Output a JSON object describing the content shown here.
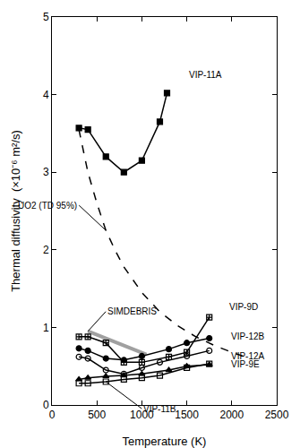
{
  "chart_data": {
    "type": "line",
    "xlabel": "Temperature (K)",
    "ylabel": "Thermal diffusivity  (×10⁻⁶ m²/s)",
    "xlim": [
      0,
      2500
    ],
    "xticks": [
      0,
      500,
      1000,
      1500,
      2000,
      2500
    ],
    "ylim": [
      0,
      5
    ],
    "yticks": [
      0,
      1,
      2,
      3,
      4,
      5
    ],
    "grid": false,
    "series": [
      {
        "name": "VIP-11A",
        "color": "#000000",
        "marker": "square",
        "line_style": "solid",
        "x": [
          300,
          400,
          600,
          800,
          1000,
          1200,
          1280
        ],
        "values": [
          3.57,
          3.55,
          3.2,
          3.0,
          3.15,
          3.65,
          4.02
        ]
      },
      {
        "name": "UO2 (TD 95%)",
        "color": "#000000",
        "marker": "none",
        "line_style": "dash",
        "x": [
          300,
          400,
          500,
          600,
          700,
          800,
          1000,
          1200,
          1400,
          1600,
          1800,
          2000,
          2200
        ],
        "values": [
          3.55,
          3.0,
          2.6,
          2.25,
          2.0,
          1.78,
          1.45,
          1.2,
          1.02,
          0.88,
          0.77,
          0.68,
          0.6
        ]
      },
      {
        "name": "SIMDEBRIS",
        "color": "#a0a0a0",
        "marker": "none",
        "line_style": "solid",
        "x": [
          400,
          1050
        ],
        "values": [
          0.95,
          0.65
        ]
      },
      {
        "name": "VIP-9D",
        "color": "#000000",
        "marker": "square-cross-open",
        "line_style": "solid",
        "x": [
          300,
          400,
          600,
          800,
          1000,
          1300,
          1500,
          1750
        ],
        "values": [
          0.88,
          0.88,
          0.8,
          0.55,
          0.55,
          0.62,
          0.68,
          1.13
        ]
      },
      {
        "name": "VIP-12B",
        "color": "#000000",
        "marker": "circle",
        "line_style": "solid",
        "x": [
          300,
          400,
          600,
          800,
          1000,
          1300,
          1500,
          1750
        ],
        "values": [
          0.73,
          0.7,
          0.6,
          0.58,
          0.63,
          0.72,
          0.8,
          0.86
        ]
      },
      {
        "name": "VIP-12A",
        "color": "#000000",
        "marker": "circle-open",
        "line_style": "solid",
        "x": [
          300,
          400,
          600,
          800,
          1000,
          1200,
          1500,
          1750
        ],
        "values": [
          0.62,
          0.6,
          0.45,
          0.4,
          0.48,
          0.55,
          0.63,
          0.7
        ]
      },
      {
        "name": "VIP-9E",
        "color": "#000000",
        "marker": "triangle-up",
        "line_style": "solid",
        "x": [
          300,
          400,
          600,
          800,
          1000,
          1300,
          1500,
          1750
        ],
        "values": [
          0.33,
          0.35,
          0.37,
          0.38,
          0.4,
          0.45,
          0.5,
          0.52
        ]
      },
      {
        "name": "VIP-11B",
        "color": "#000000",
        "marker": "square-open",
        "line_style": "solid",
        "x": [
          300,
          400,
          600,
          800,
          1000,
          1200,
          1500,
          1750
        ],
        "values": [
          0.28,
          0.28,
          0.3,
          0.33,
          0.35,
          0.38,
          0.48,
          0.53
        ]
      }
    ]
  }
}
